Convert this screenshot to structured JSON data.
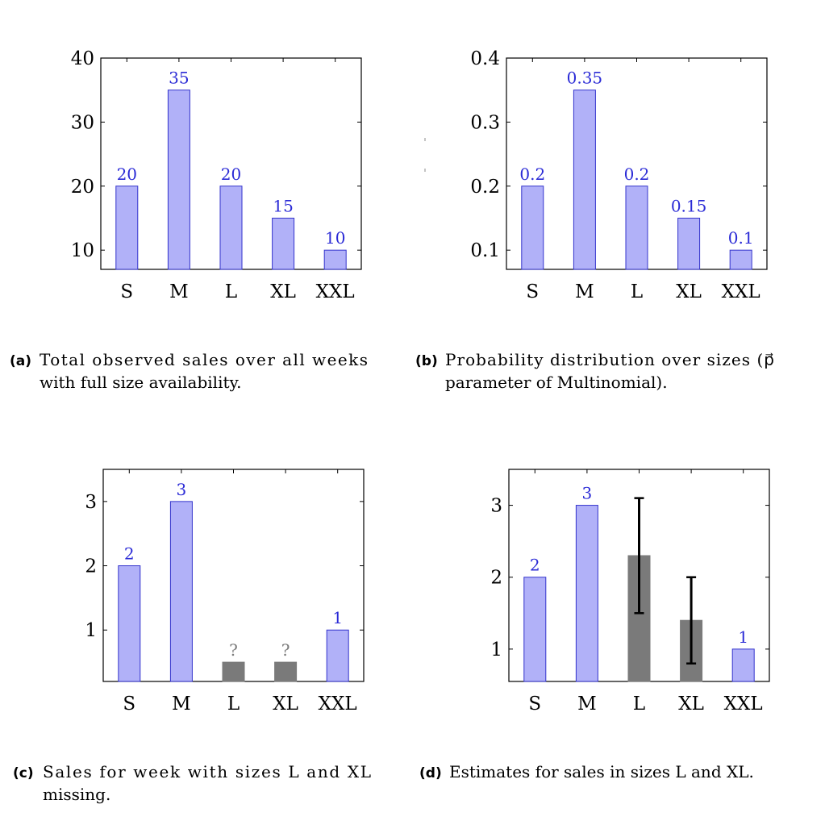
{
  "chart_data": [
    {
      "type": "bar",
      "caption_tag": "(a)",
      "caption_lines": [
        "Total observed sales over all weeks",
        "with full size availability."
      ],
      "categories": [
        "S",
        "M",
        "L",
        "XL",
        "XXL"
      ],
      "values": [
        20,
        35,
        20,
        15,
        10
      ],
      "bar_kinds": [
        "observed",
        "observed",
        "observed",
        "observed",
        "observed"
      ],
      "data_labels": [
        "20",
        "35",
        "20",
        "15",
        "10"
      ],
      "yticks": [
        10,
        20,
        30,
        40
      ],
      "ytick_labels": [
        "10",
        "20",
        "30",
        "40"
      ],
      "ylim": [
        7,
        40
      ]
    },
    {
      "type": "bar",
      "caption_tag": "(b)",
      "caption_lines": [
        "Probability distribution over sizes (p⃗",
        "parameter of Multinomial)."
      ],
      "categories": [
        "S",
        "M",
        "L",
        "XL",
        "XXL"
      ],
      "values": [
        0.2,
        0.35,
        0.2,
        0.15,
        0.1
      ],
      "bar_kinds": [
        "observed",
        "observed",
        "observed",
        "observed",
        "observed"
      ],
      "data_labels": [
        "0.2",
        "0.35",
        "0.2",
        "0.15",
        "0.1"
      ],
      "yticks": [
        0.1,
        0.2,
        0.3,
        0.4
      ],
      "ytick_labels": [
        "0.1",
        "0.2",
        "0.3",
        "0.4"
      ],
      "ylim": [
        0.07,
        0.4
      ]
    },
    {
      "type": "bar",
      "caption_tag": "(c)",
      "caption_lines": [
        "Sales for week with sizes L and XL",
        "missing."
      ],
      "categories": [
        "S",
        "M",
        "L",
        "XL",
        "XXL"
      ],
      "values": [
        2,
        3,
        0.5,
        0.5,
        1
      ],
      "bar_kinds": [
        "observed",
        "observed",
        "missing",
        "missing",
        "observed"
      ],
      "data_labels": [
        "2",
        "3",
        "?",
        "?",
        "1"
      ],
      "yticks": [
        1,
        2,
        3
      ],
      "ytick_labels": [
        "1",
        "2",
        "3"
      ],
      "ylim": [
        0.2,
        3.5
      ]
    },
    {
      "type": "bar",
      "caption_tag": "(d)",
      "caption_lines": [
        "Estimates for sales in sizes L and XL."
      ],
      "categories": [
        "S",
        "M",
        "L",
        "XL",
        "XXL"
      ],
      "values": [
        2,
        3,
        2.3,
        1.4,
        1
      ],
      "bar_kinds": [
        "observed",
        "observed",
        "estimate",
        "estimate",
        "observed"
      ],
      "data_labels": [
        "2",
        "3",
        "",
        "",
        "1"
      ],
      "error_bars": [
        null,
        null,
        [
          1.5,
          3.1
        ],
        [
          0.8,
          2.0
        ],
        null
      ],
      "yticks": [
        1,
        2,
        3
      ],
      "ytick_labels": [
        "1",
        "2",
        "3"
      ],
      "ylim": [
        0.55,
        3.5
      ]
    }
  ],
  "colors": {
    "bar_fill": "#b1b1f8",
    "bar_stroke": "#3333cc",
    "gray_fill": "#7a7a7a",
    "label_blue": "#2b2bd6",
    "axis": "#000000",
    "error": "#000000"
  }
}
